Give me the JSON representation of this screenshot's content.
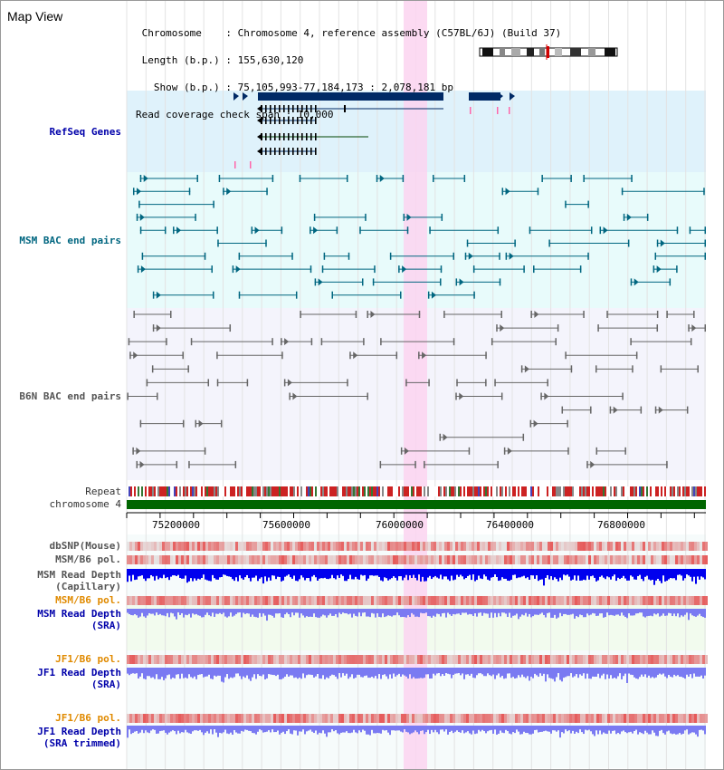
{
  "header": {
    "title": "Map View",
    "info_lines": [
      " Chromosome    : Chromosome 4, reference assembly (C57BL/6J) (Build 37)",
      " Length (b.p.) : 155,630,120",
      "   Show (b.p.) : 75,105,993-77,184,173 : 2,078,181 bp",
      "Read coverage check span : 10,000"
    ]
  },
  "tracks": {
    "refseq": "RefSeq Genes",
    "msm_bac": "MSM BAC end pairs",
    "b6n_bac": "B6N BAC end pairs",
    "repeat": "Repeat",
    "chromosome": "chromosome 4",
    "dbsnp": "dbSNP(Mouse)",
    "msm_b6_pol_1": "MSM/B6 pol.",
    "msm_depth_cap_1": "MSM Read Depth",
    "msm_depth_cap_2": "(Capillary)",
    "msm_b6_pol_2": "MSM/B6 pol.",
    "msm_depth_sra_1": "MSM Read Depth",
    "msm_depth_sra_2": "(SRA)",
    "jf1_b6_pol_1": "JF1/B6 pol.",
    "jf1_depth_sra_1": "JF1 Read Depth",
    "jf1_depth_sra_2": "(SRA)",
    "jf1_b6_pol_2": "JF1/B6 pol.",
    "jf1_depth_trim_1": "JF1 Read Depth",
    "jf1_depth_trim_2": "(SRA trimmed)"
  },
  "ruler": {
    "ticks": [
      "75200000",
      "75600000",
      "76000000",
      "76400000",
      "76800000"
    ]
  },
  "colors": {
    "refseq_bg": "#dff2fb",
    "msm_bg": "#e8fbfb",
    "b6n_bg": "#f4f4fc",
    "highlight": "#fbd3f0",
    "gene": "#002a66",
    "msm_feature": "#006680",
    "b6n_feature": "#666666",
    "chromosome": "#006600",
    "snp": "#e83030",
    "depth_dark": "#0000ee",
    "depth_light": "#7a7af2",
    "pol_orange": "#e08a00"
  }
}
